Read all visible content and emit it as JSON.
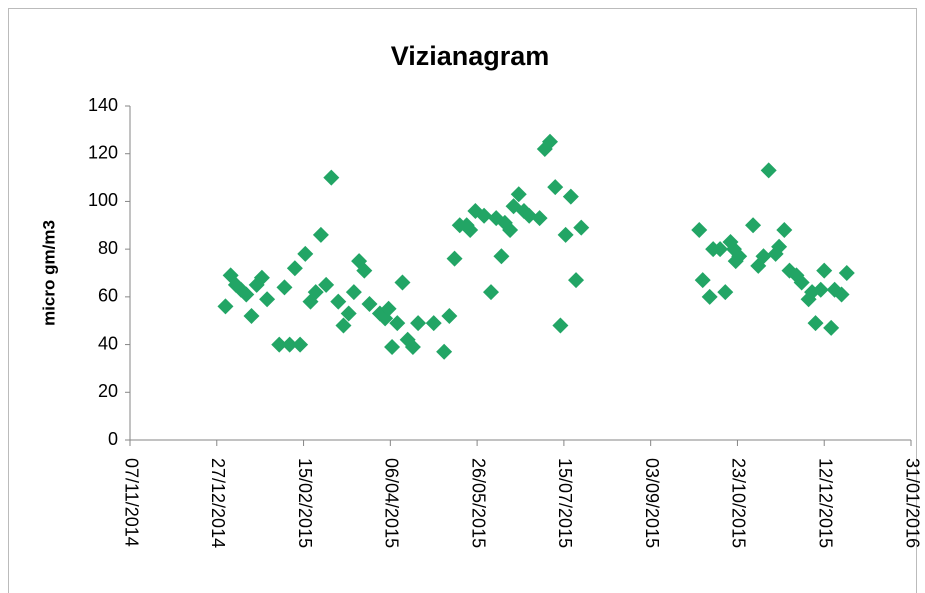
{
  "chart_data": {
    "type": "scatter",
    "title": "Vizianagram",
    "y_label": "micro gm/m3",
    "color": "#22a565",
    "marker": "diamond",
    "x": [
      "01/01/2015",
      "04/01/2015",
      "07/01/2015",
      "10/01/2015",
      "13/01/2015",
      "16/01/2015",
      "19/01/2015",
      "22/01/2015",
      "25/01/2015",
      "01/02/2015",
      "04/02/2015",
      "07/02/2015",
      "10/02/2015",
      "13/02/2015",
      "16/02/2015",
      "19/02/2015",
      "22/02/2015",
      "25/02/2015",
      "28/02/2015",
      "03/03/2015",
      "07/03/2015",
      "10/03/2015",
      "13/03/2015",
      "16/03/2015",
      "19/03/2015",
      "22/03/2015",
      "25/03/2015",
      "31/03/2015",
      "03/04/2015",
      "05/04/2015",
      "07/04/2015",
      "10/04/2015",
      "13/04/2015",
      "16/04/2015",
      "19/04/2015",
      "22/04/2015",
      "01/05/2015",
      "07/05/2015",
      "10/05/2015",
      "13/05/2015",
      "16/05/2015",
      "20/05/2015",
      "22/05/2015",
      "25/05/2015",
      "30/05/2015",
      "03/06/2015",
      "06/06/2015",
      "09/06/2015",
      "11/06/2015",
      "14/06/2015",
      "16/06/2015",
      "19/06/2015",
      "22/06/2015",
      "25/06/2015",
      "01/07/2015",
      "04/07/2015",
      "07/07/2015",
      "10/07/2015",
      "13/07/2015",
      "16/07/2015",
      "19/07/2015",
      "22/07/2015",
      "25/07/2015",
      "01/10/2015",
      "03/10/2015",
      "07/10/2015",
      "09/10/2015",
      "13/10/2015",
      "16/10/2015",
      "19/10/2015",
      "21/10/2015",
      "22/10/2015",
      "24/10/2015",
      "01/11/2015",
      "04/11/2015",
      "07/11/2015",
      "10/11/2015",
      "14/11/2015",
      "16/11/2015",
      "19/11/2015",
      "22/11/2015",
      "26/11/2015",
      "29/11/2015",
      "03/12/2015",
      "05/12/2015",
      "07/12/2015",
      "10/12/2015",
      "12/12/2015",
      "16/12/2015",
      "18/12/2015",
      "22/12/2015",
      "25/12/2015"
    ],
    "values": [
      56,
      69,
      65,
      63,
      61,
      52,
      65,
      68,
      59,
      40,
      64,
      40,
      72,
      40,
      78,
      58,
      62,
      86,
      65,
      110,
      58,
      48,
      53,
      62,
      75,
      71,
      57,
      53,
      51,
      55,
      39,
      49,
      66,
      42,
      39,
      49,
      49,
      37,
      52,
      76,
      90,
      90,
      88,
      96,
      94,
      62,
      93,
      77,
      91,
      88,
      98,
      103,
      96,
      94,
      93,
      122,
      125,
      106,
      48,
      86,
      102,
      67,
      89,
      88,
      67,
      60,
      80,
      80,
      62,
      83,
      80,
      75,
      77,
      90,
      73,
      77,
      113,
      78,
      81,
      88,
      71,
      69,
      66,
      59,
      62,
      49,
      63,
      71,
      47,
      63,
      61,
      70
    ],
    "xlim": [
      "07/11/2014",
      "31/01/2016"
    ],
    "xticks": [
      "07/11/2014",
      "27/12/2014",
      "15/02/2015",
      "06/04/2015",
      "26/05/2015",
      "15/07/2015",
      "03/09/2015",
      "23/10/2015",
      "12/12/2015",
      "31/01/2016"
    ],
    "ylim": [
      0,
      140
    ],
    "yticks": [
      0,
      20,
      40,
      60,
      80,
      100,
      120,
      140
    ],
    "grid": false
  }
}
